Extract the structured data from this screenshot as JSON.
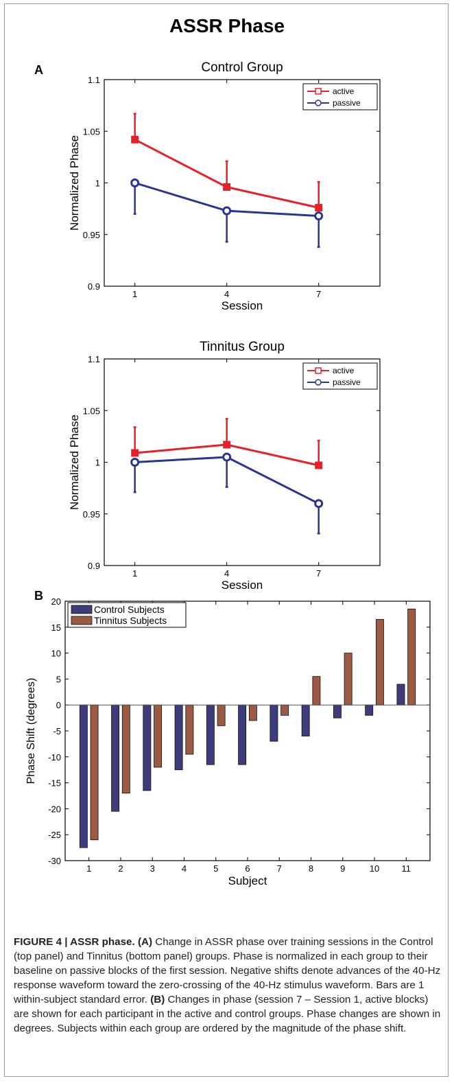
{
  "figure": {
    "main_title": "ASSR Phase",
    "panel_a_label": "A",
    "panel_b_label": "B"
  },
  "chart_data": [
    {
      "type": "line",
      "title": "Control Group",
      "xlabel": "Session",
      "ylabel": "Normalized Phase",
      "x": [
        1,
        4,
        7
      ],
      "xlim": [
        0,
        9
      ],
      "ylim": [
        0.9,
        1.1
      ],
      "yticks": [
        0.9,
        0.95,
        1,
        1.05,
        1.1
      ],
      "ytick_labels": [
        "0.9",
        "0.95",
        "1",
        "1.05",
        "1.1"
      ],
      "xtick_labels": [
        "1",
        "4",
        "7"
      ],
      "legend": "top-right",
      "series": [
        {
          "name": "active",
          "color": "#e8202a",
          "marker": "square",
          "values": [
            1.042,
            0.996,
            0.976
          ],
          "errors": [
            0.025,
            0.025,
            0.025
          ]
        },
        {
          "name": "passive",
          "color": "#2a3592",
          "marker": "circle",
          "values": [
            1.0,
            0.973,
            0.968
          ],
          "errors": [
            0.03,
            0.03,
            0.03
          ]
        }
      ]
    },
    {
      "type": "line",
      "title": "Tinnitus Group",
      "xlabel": "Session",
      "ylabel": "Normalized Phase",
      "x": [
        1,
        4,
        7
      ],
      "xlim": [
        0,
        9
      ],
      "ylim": [
        0.9,
        1.1
      ],
      "yticks": [
        0.9,
        0.95,
        1,
        1.05,
        1.1
      ],
      "ytick_labels": [
        "0.9",
        "0.95",
        "1",
        "1.05",
        "1.1"
      ],
      "xtick_labels": [
        "1",
        "4",
        "7"
      ],
      "legend": "top-right",
      "series": [
        {
          "name": "active",
          "color": "#e8202a",
          "marker": "square",
          "values": [
            1.009,
            1.017,
            0.997
          ],
          "errors": [
            0.025,
            0.025,
            0.024
          ]
        },
        {
          "name": "passive",
          "color": "#2a3592",
          "marker": "circle",
          "values": [
            1.0,
            1.005,
            0.96
          ],
          "errors": [
            0.029,
            0.029,
            0.029
          ]
        }
      ]
    },
    {
      "type": "bar",
      "title": "",
      "xlabel": "Subject",
      "ylabel": "Phase Shift (degrees)",
      "categories": [
        "1",
        "2",
        "3",
        "4",
        "5",
        "6",
        "7",
        "8",
        "9",
        "10",
        "11"
      ],
      "ylim": [
        -30,
        20
      ],
      "yticks": [
        -30,
        -25,
        -20,
        -15,
        -10,
        -5,
        0,
        5,
        10,
        15,
        20
      ],
      "ytick_labels": [
        "-30",
        "-25",
        "-20",
        "-15",
        "-10",
        "-5",
        "0",
        "5",
        "10",
        "15",
        "20"
      ],
      "legend": "top-left",
      "series": [
        {
          "name": "Control Subjects",
          "color": "#3d3d7d",
          "values": [
            -27.5,
            -20.5,
            -16.5,
            -12.5,
            -11.5,
            -11.5,
            -7,
            -6,
            -2.5,
            -2,
            4
          ]
        },
        {
          "name": "Tinnitus Subjects",
          "color": "#9a5a43",
          "values": [
            -26,
            -17,
            -12,
            -9.5,
            -4,
            -3,
            -2,
            5.5,
            10,
            16.5,
            18.5
          ]
        }
      ]
    }
  ],
  "caption": {
    "heading": "FIGURE 4 | ASSR phase.",
    "a_label": "(A)",
    "a_text": " Change in ASSR phase over training sessions in the Control (top panel) and Tinnitus (bottom panel) groups. Phase is normalized in each group to their baseline on passive blocks of the first session. Negative shifts denote advances of the 40-Hz response waveform toward the zero-crossing of the 40-Hz stimulus waveform. Bars are 1 within-subject standard error.",
    "b_label": "(B)",
    "b_text": " Changes in phase (session 7 – Session 1, active blocks) are shown for each participant in the active and control groups. Phase changes are shown in degrees. Subjects within each group are ordered by the magnitude of the phase shift."
  }
}
